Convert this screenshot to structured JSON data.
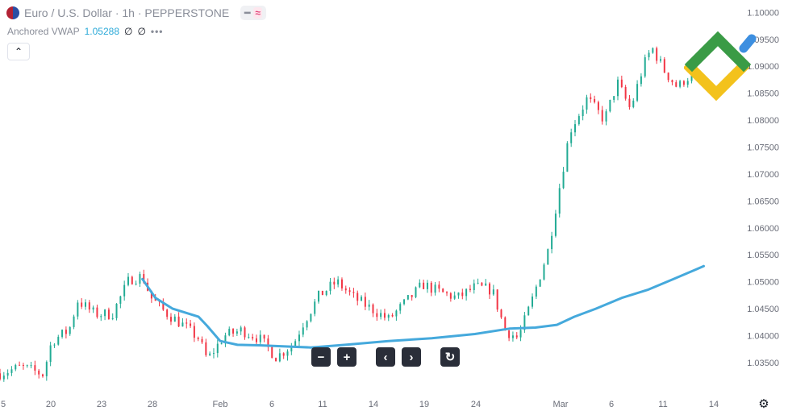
{
  "header": {
    "symbol": "Euro / U.S. Dollar · 1h · PEPPERSTONE",
    "pill_a": "━",
    "pill_b": "≈"
  },
  "indicator": {
    "name": "Anchored VWAP",
    "value": "1.05288",
    "val2": "∅",
    "val3": "∅",
    "more": "•••"
  },
  "controls": {
    "collapse": "⌃",
    "zoom_out": "−",
    "zoom_in": "+",
    "scroll_left": "‹",
    "scroll_right": "›",
    "reset": "↻",
    "settings": "⚙"
  },
  "colors": {
    "up": "#22ab94",
    "down": "#f23645",
    "vwap": "#45a9dc",
    "logo_green": "#3a9b46",
    "logo_yellow": "#f3c21c",
    "logo_blue": "#3d8fe0"
  },
  "chart_data": {
    "type": "candlestick",
    "title": "Euro / U.S. Dollar · 1h · PEPPERSTONE",
    "x_tick_labels": [
      "5",
      "20",
      "23",
      "28",
      "Feb",
      "6",
      "11",
      "14",
      "19",
      "24",
      "Mar",
      "6",
      "11",
      "14"
    ],
    "y_tick_labels": [
      "1.10000",
      "1.09500",
      "1.09000",
      "1.08500",
      "1.08000",
      "1.07500",
      "1.07000",
      "1.06500",
      "1.06000",
      "1.05500",
      "1.05000",
      "1.04500",
      "1.04000",
      "1.03500"
    ],
    "ylim": [
      1.0305,
      1.1005
    ],
    "price_path": [
      {
        "x": 0,
        "y": 1.033
      },
      {
        "x": 5,
        "y": 1.0342
      },
      {
        "x": 10,
        "y": 1.0328
      },
      {
        "x": 12,
        "y": 1.039
      },
      {
        "x": 16,
        "y": 1.041
      },
      {
        "x": 18,
        "y": 1.0465
      },
      {
        "x": 22,
        "y": 1.044
      },
      {
        "x": 26,
        "y": 1.044
      },
      {
        "x": 30,
        "y": 1.0505
      },
      {
        "x": 33,
        "y": 1.051
      },
      {
        "x": 35,
        "y": 1.047
      },
      {
        "x": 38,
        "y": 1.0445
      },
      {
        "x": 42,
        "y": 1.0422
      },
      {
        "x": 46,
        "y": 1.0395
      },
      {
        "x": 48,
        "y": 1.0355
      },
      {
        "x": 52,
        "y": 1.04
      },
      {
        "x": 56,
        "y": 1.041
      },
      {
        "x": 60,
        "y": 1.0395
      },
      {
        "x": 64,
        "y": 1.036
      },
      {
        "x": 68,
        "y": 1.0385
      },
      {
        "x": 70,
        "y": 1.042
      },
      {
        "x": 74,
        "y": 1.0475
      },
      {
        "x": 78,
        "y": 1.05
      },
      {
        "x": 82,
        "y": 1.047
      },
      {
        "x": 86,
        "y": 1.045
      },
      {
        "x": 90,
        "y": 1.043
      },
      {
        "x": 94,
        "y": 1.0462
      },
      {
        "x": 98,
        "y": 1.0495
      },
      {
        "x": 102,
        "y": 1.048
      },
      {
        "x": 106,
        "y": 1.047
      },
      {
        "x": 110,
        "y": 1.049
      },
      {
        "x": 114,
        "y": 1.0485
      },
      {
        "x": 117,
        "y": 1.041
      },
      {
        "x": 120,
        "y": 1.0395
      },
      {
        "x": 123,
        "y": 1.046
      },
      {
        "x": 127,
        "y": 1.056
      },
      {
        "x": 129,
        "y": 1.065
      },
      {
        "x": 132,
        "y": 1.078
      },
      {
        "x": 136,
        "y": 1.084
      },
      {
        "x": 140,
        "y": 1.08
      },
      {
        "x": 143,
        "y": 1.087
      },
      {
        "x": 146,
        "y": 1.082
      },
      {
        "x": 149,
        "y": 1.09
      },
      {
        "x": 151,
        "y": 1.0935
      },
      {
        "x": 154,
        "y": 1.089
      },
      {
        "x": 157,
        "y": 1.086
      },
      {
        "x": 159,
        "y": 1.088
      },
      {
        "x": 161,
        "y": 1.0875
      }
    ],
    "vwap": [
      {
        "x": 33,
        "y": 1.0505
      },
      {
        "x": 36,
        "y": 1.047
      },
      {
        "x": 40,
        "y": 1.045
      },
      {
        "x": 46,
        "y": 1.0435
      },
      {
        "x": 48,
        "y": 1.0418
      },
      {
        "x": 51,
        "y": 1.039
      },
      {
        "x": 55,
        "y": 1.0383
      },
      {
        "x": 60,
        "y": 1.0382
      },
      {
        "x": 66,
        "y": 1.038
      },
      {
        "x": 72,
        "y": 1.0378
      },
      {
        "x": 80,
        "y": 1.0383
      },
      {
        "x": 90,
        "y": 1.039
      },
      {
        "x": 100,
        "y": 1.0395
      },
      {
        "x": 110,
        "y": 1.0403
      },
      {
        "x": 118,
        "y": 1.0413
      },
      {
        "x": 124,
        "y": 1.0415
      },
      {
        "x": 129,
        "y": 1.042
      },
      {
        "x": 133,
        "y": 1.0435
      },
      {
        "x": 138,
        "y": 1.045
      },
      {
        "x": 144,
        "y": 1.047
      },
      {
        "x": 150,
        "y": 1.0485
      },
      {
        "x": 156,
        "y": 1.0505
      },
      {
        "x": 161,
        "y": 1.0522
      },
      {
        "x": 163,
        "y": 1.0529
      }
    ]
  }
}
